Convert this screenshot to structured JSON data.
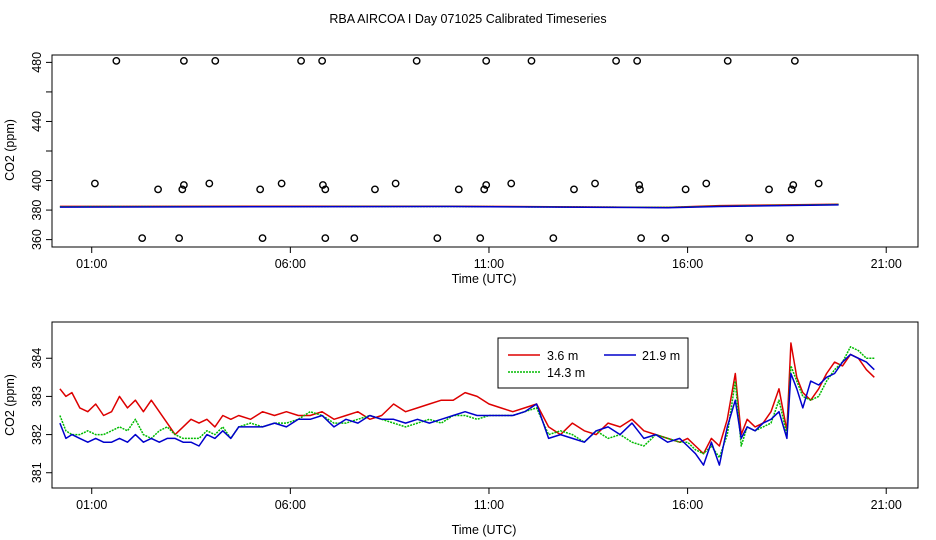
{
  "page_title": "RBA AIRCOA I  Day 071025  Calibrated Timeseries",
  "colors": {
    "h3_6": "#dd0000",
    "h14_3": "#00bb00",
    "h21_9": "#0000cc",
    "axis": "#000000"
  },
  "chart_data": [
    {
      "type": "scatter+line",
      "title": "",
      "xlabel": "Time (UTC)",
      "ylabel": "CO2 (ppm)",
      "xlim": [
        0.0,
        21.8
      ],
      "ylim": [
        355,
        485
      ],
      "x_tick_values": [
        1,
        6,
        11,
        16,
        21
      ],
      "x_tick_labels": [
        "01:00",
        "06:00",
        "11:00",
        "16:00",
        "21:00"
      ],
      "y_tick_values": [
        360,
        380,
        400,
        420,
        440,
        460,
        480
      ],
      "y_tick_labels": [
        "360",
        "",
        "400",
        "440",
        "480"
      ],
      "y_tick_labels_at": [
        360,
        380,
        400,
        440,
        480
      ],
      "markers": [
        {
          "x": 1.62,
          "y": 481
        },
        {
          "x": 1.08,
          "y": 398
        },
        {
          "x": 2.67,
          "y": 394
        },
        {
          "x": 2.27,
          "y": 361
        },
        {
          "x": 3.28,
          "y": 394
        },
        {
          "x": 3.32,
          "y": 397
        },
        {
          "x": 3.2,
          "y": 361
        },
        {
          "x": 3.32,
          "y": 481
        },
        {
          "x": 3.96,
          "y": 398
        },
        {
          "x": 4.11,
          "y": 481
        },
        {
          "x": 5.3,
          "y": 361
        },
        {
          "x": 5.24,
          "y": 394
        },
        {
          "x": 5.78,
          "y": 398
        },
        {
          "x": 6.27,
          "y": 481
        },
        {
          "x": 6.8,
          "y": 481
        },
        {
          "x": 6.82,
          "y": 397
        },
        {
          "x": 6.88,
          "y": 394
        },
        {
          "x": 6.88,
          "y": 361
        },
        {
          "x": 7.61,
          "y": 361
        },
        {
          "x": 8.13,
          "y": 394
        },
        {
          "x": 8.65,
          "y": 398
        },
        {
          "x": 9.18,
          "y": 481
        },
        {
          "x": 9.7,
          "y": 361
        },
        {
          "x": 10.24,
          "y": 394
        },
        {
          "x": 10.78,
          "y": 361
        },
        {
          "x": 10.88,
          "y": 394
        },
        {
          "x": 10.93,
          "y": 397
        },
        {
          "x": 10.93,
          "y": 481
        },
        {
          "x": 11.56,
          "y": 398
        },
        {
          "x": 12.07,
          "y": 481
        },
        {
          "x": 12.62,
          "y": 361
        },
        {
          "x": 13.14,
          "y": 394
        },
        {
          "x": 13.67,
          "y": 398
        },
        {
          "x": 14.2,
          "y": 481
        },
        {
          "x": 14.73,
          "y": 481
        },
        {
          "x": 14.78,
          "y": 397
        },
        {
          "x": 14.8,
          "y": 394
        },
        {
          "x": 14.83,
          "y": 361
        },
        {
          "x": 15.44,
          "y": 361
        },
        {
          "x": 15.95,
          "y": 394
        },
        {
          "x": 16.47,
          "y": 398
        },
        {
          "x": 17.01,
          "y": 481
        },
        {
          "x": 17.55,
          "y": 361
        },
        {
          "x": 18.05,
          "y": 394
        },
        {
          "x": 18.58,
          "y": 361
        },
        {
          "x": 18.62,
          "y": 394
        },
        {
          "x": 18.66,
          "y": 397
        },
        {
          "x": 18.7,
          "y": 481
        },
        {
          "x": 19.3,
          "y": 398
        }
      ],
      "series": [
        {
          "name": "3.6 m",
          "color": "#dd0000",
          "x": [
            0.2,
            10.0,
            15.5,
            16.8,
            19.8
          ],
          "y": [
            382.5,
            382.6,
            381.8,
            383.0,
            384.0
          ]
        },
        {
          "name": "14.3 m",
          "color": "#00bb00",
          "x": [
            0.2,
            10.0,
            15.5,
            16.8,
            19.8
          ],
          "y": [
            382.3,
            382.4,
            381.8,
            382.6,
            383.8
          ]
        },
        {
          "name": "21.9 m",
          "color": "#0000cc",
          "x": [
            0.2,
            10.0,
            15.5,
            16.8,
            19.8
          ],
          "y": [
            382.0,
            382.4,
            381.6,
            382.4,
            383.5
          ]
        }
      ]
    },
    {
      "type": "line",
      "title": "",
      "xlabel": "Time (UTC)",
      "ylabel": "CO2 (ppm)",
      "xlim": [
        0.0,
        21.8
      ],
      "ylim": [
        380.6,
        384.95
      ],
      "x_tick_values": [
        1,
        6,
        11,
        16,
        21
      ],
      "x_tick_labels": [
        "01:00",
        "06:00",
        "11:00",
        "16:00",
        "21:00"
      ],
      "y_tick_values": [
        381,
        382,
        383,
        384
      ],
      "y_tick_labels": [
        "381",
        "382",
        "383",
        "384"
      ],
      "legend": {
        "position": "top-center",
        "entries": [
          {
            "label": "3.6 m",
            "color": "#dd0000"
          },
          {
            "label": "21.9 m",
            "color": "#0000cc"
          },
          {
            "label": "14.3 m",
            "color": "#00bb00"
          }
        ]
      },
      "series": [
        {
          "name": "3.6 m",
          "color": "#dd0000",
          "x": [
            0.2,
            0.35,
            0.5,
            0.7,
            0.9,
            1.1,
            1.3,
            1.5,
            1.7,
            1.9,
            2.1,
            2.3,
            2.5,
            2.7,
            2.9,
            3.1,
            3.3,
            3.5,
            3.7,
            3.9,
            4.1,
            4.3,
            4.5,
            4.7,
            5.0,
            5.3,
            5.6,
            5.9,
            6.2,
            6.5,
            6.8,
            7.1,
            7.4,
            7.7,
            8.0,
            8.3,
            8.6,
            8.9,
            9.2,
            9.5,
            9.8,
            10.1,
            10.4,
            10.7,
            11.0,
            11.3,
            11.6,
            11.9,
            12.2,
            12.5,
            12.8,
            13.1,
            13.4,
            13.7,
            14.0,
            14.3,
            14.6,
            14.9,
            15.2,
            15.5,
            15.8,
            16.0,
            16.2,
            16.4,
            16.6,
            16.8,
            17.0,
            17.2,
            17.35,
            17.5,
            17.7,
            17.9,
            18.1,
            18.3,
            18.5,
            18.6,
            18.75,
            18.9,
            19.1,
            19.3,
            19.5,
            19.7,
            19.9,
            20.1,
            20.3,
            20.5,
            20.7
          ],
          "y": [
            383.2,
            383.0,
            383.1,
            382.7,
            382.6,
            382.8,
            382.5,
            382.6,
            383.0,
            382.7,
            382.9,
            382.6,
            382.9,
            382.6,
            382.3,
            382.0,
            382.2,
            382.4,
            382.3,
            382.4,
            382.2,
            382.5,
            382.4,
            382.5,
            382.4,
            382.6,
            382.5,
            382.6,
            382.5,
            382.5,
            382.6,
            382.4,
            382.5,
            382.6,
            382.4,
            382.5,
            382.8,
            382.6,
            382.7,
            382.8,
            382.9,
            382.9,
            383.1,
            383.0,
            382.8,
            382.7,
            382.6,
            382.7,
            382.8,
            382.2,
            382.0,
            382.3,
            382.1,
            382.0,
            382.3,
            382.2,
            382.4,
            382.1,
            382.0,
            381.9,
            381.8,
            381.9,
            381.7,
            381.5,
            381.9,
            381.7,
            382.4,
            383.6,
            382.0,
            382.4,
            382.2,
            382.3,
            382.6,
            383.2,
            382.1,
            384.4,
            383.5,
            383.1,
            382.9,
            383.2,
            383.6,
            383.9,
            383.8,
            384.1,
            384.0,
            383.7,
            383.5
          ]
        },
        {
          "name": "14.3 m",
          "color": "#00bb00",
          "x": [
            0.2,
            0.35,
            0.5,
            0.7,
            0.9,
            1.1,
            1.3,
            1.5,
            1.7,
            1.9,
            2.1,
            2.3,
            2.5,
            2.7,
            2.9,
            3.1,
            3.3,
            3.5,
            3.7,
            3.9,
            4.1,
            4.3,
            4.5,
            4.7,
            5.0,
            5.3,
            5.6,
            5.9,
            6.2,
            6.5,
            6.8,
            7.1,
            7.4,
            7.7,
            8.0,
            8.3,
            8.6,
            8.9,
            9.2,
            9.5,
            9.8,
            10.1,
            10.4,
            10.7,
            11.0,
            11.3,
            11.6,
            11.9,
            12.2,
            12.5,
            12.8,
            13.1,
            13.4,
            13.7,
            14.0,
            14.3,
            14.6,
            14.9,
            15.2,
            15.5,
            15.8,
            16.0,
            16.2,
            16.4,
            16.6,
            16.8,
            17.0,
            17.2,
            17.35,
            17.5,
            17.7,
            17.9,
            18.1,
            18.3,
            18.5,
            18.6,
            18.75,
            18.9,
            19.1,
            19.3,
            19.5,
            19.7,
            19.9,
            20.1,
            20.3,
            20.5,
            20.7
          ],
          "y": [
            382.5,
            382.1,
            382.0,
            382.0,
            382.1,
            382.0,
            382.0,
            382.1,
            382.2,
            382.1,
            382.4,
            382.0,
            381.9,
            382.1,
            382.2,
            382.0,
            381.9,
            381.9,
            381.9,
            382.1,
            382.0,
            382.2,
            381.9,
            382.2,
            382.3,
            382.2,
            382.3,
            382.3,
            382.4,
            382.6,
            382.5,
            382.3,
            382.3,
            382.4,
            382.5,
            382.4,
            382.3,
            382.2,
            382.3,
            382.4,
            382.3,
            382.5,
            382.5,
            382.4,
            382.5,
            382.5,
            382.5,
            382.6,
            382.7,
            382.0,
            382.1,
            382.0,
            381.8,
            382.1,
            381.9,
            382.0,
            381.8,
            381.7,
            382.0,
            381.9,
            381.8,
            381.8,
            381.6,
            381.5,
            381.7,
            381.4,
            382.0,
            383.4,
            381.7,
            382.2,
            382.1,
            382.2,
            382.3,
            382.9,
            382.0,
            383.8,
            383.4,
            383.0,
            382.9,
            383.0,
            383.4,
            383.7,
            383.9,
            384.3,
            384.2,
            384.0,
            384.0
          ]
        },
        {
          "name": "21.9 m",
          "color": "#0000cc",
          "x": [
            0.2,
            0.35,
            0.5,
            0.7,
            0.9,
            1.1,
            1.3,
            1.5,
            1.7,
            1.9,
            2.1,
            2.3,
            2.5,
            2.7,
            2.9,
            3.1,
            3.3,
            3.5,
            3.7,
            3.9,
            4.1,
            4.3,
            4.5,
            4.7,
            5.0,
            5.3,
            5.6,
            5.9,
            6.2,
            6.5,
            6.8,
            7.1,
            7.4,
            7.7,
            8.0,
            8.3,
            8.6,
            8.9,
            9.2,
            9.5,
            9.8,
            10.1,
            10.4,
            10.7,
            11.0,
            11.3,
            11.6,
            11.9,
            12.2,
            12.5,
            12.8,
            13.1,
            13.4,
            13.7,
            14.0,
            14.3,
            14.6,
            14.9,
            15.2,
            15.5,
            15.8,
            16.0,
            16.2,
            16.4,
            16.6,
            16.8,
            17.0,
            17.2,
            17.35,
            17.5,
            17.7,
            17.9,
            18.1,
            18.3,
            18.5,
            18.6,
            18.75,
            18.9,
            19.1,
            19.3,
            19.5,
            19.7,
            19.9,
            20.1,
            20.3,
            20.5,
            20.7
          ],
          "y": [
            382.3,
            381.9,
            382.0,
            381.9,
            381.8,
            381.9,
            381.8,
            381.8,
            381.9,
            381.8,
            382.0,
            381.8,
            381.9,
            381.8,
            381.9,
            381.9,
            381.8,
            381.8,
            381.7,
            382.0,
            381.9,
            382.1,
            381.9,
            382.2,
            382.2,
            382.2,
            382.3,
            382.2,
            382.4,
            382.4,
            382.5,
            382.2,
            382.4,
            382.3,
            382.5,
            382.4,
            382.4,
            382.3,
            382.4,
            382.3,
            382.4,
            382.5,
            382.6,
            382.5,
            382.5,
            382.5,
            382.5,
            382.6,
            382.8,
            381.9,
            382.0,
            381.9,
            381.8,
            382.1,
            382.2,
            382.0,
            382.3,
            381.9,
            382.0,
            381.8,
            381.9,
            381.7,
            381.5,
            381.2,
            381.8,
            381.2,
            382.2,
            382.9,
            381.9,
            382.2,
            382.1,
            382.3,
            382.4,
            382.6,
            381.9,
            383.6,
            383.2,
            382.7,
            383.4,
            383.3,
            383.5,
            383.6,
            383.9,
            384.1,
            384.0,
            383.9,
            383.7
          ]
        }
      ]
    }
  ]
}
